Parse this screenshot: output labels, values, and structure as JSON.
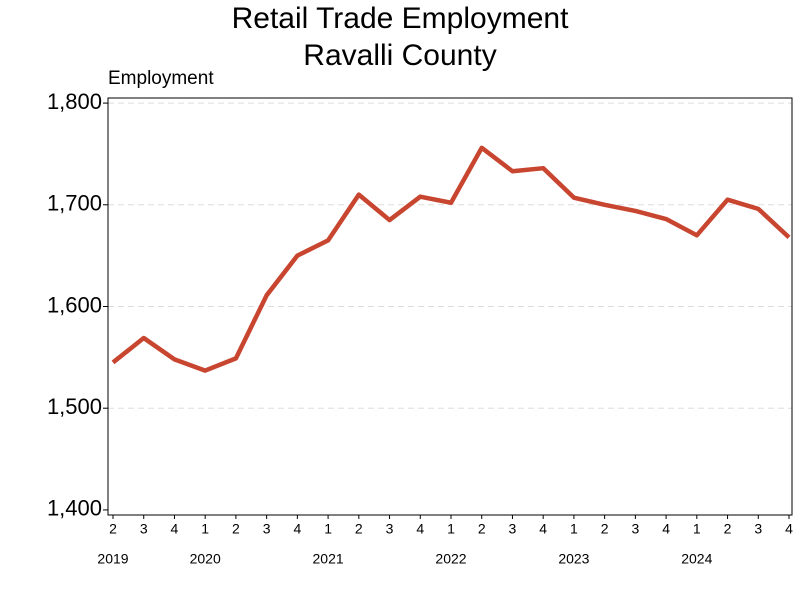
{
  "chart_data": {
    "type": "line",
    "title": [
      "Retail Trade Employment",
      "Ravalli County"
    ],
    "ylabel": "Employment",
    "categories": [
      "2",
      "3",
      "4",
      "1",
      "2",
      "3",
      "4",
      "1",
      "2",
      "3",
      "4",
      "1",
      "2",
      "3",
      "4",
      "1",
      "2",
      "3",
      "4",
      "1",
      "2",
      "3",
      "4"
    ],
    "years": [
      "2019",
      null,
      null,
      "2020",
      null,
      null,
      null,
      "2021",
      null,
      null,
      null,
      "2022",
      null,
      null,
      null,
      "2023",
      null,
      null,
      null,
      "2024",
      null,
      null,
      null
    ],
    "series": [
      {
        "color": "#c8452f",
        "values": [
          1545,
          1569,
          1548,
          1537,
          1549,
          1611,
          1650,
          1665,
          1710,
          1685,
          1708,
          1702,
          1756,
          1733,
          1736,
          1707,
          1700,
          1694,
          1686,
          1670,
          1705,
          1696,
          1668
        ]
      }
    ],
    "ylim": [
      1395,
      1805
    ],
    "yticks": [
      {
        "value": 1400,
        "label": "1,400"
      },
      {
        "value": 1500,
        "label": "1,500"
      },
      {
        "value": 1600,
        "label": "1,600"
      },
      {
        "value": 1700,
        "label": "1,700"
      },
      {
        "value": 1800,
        "label": "1,800"
      }
    ],
    "grid": true
  }
}
